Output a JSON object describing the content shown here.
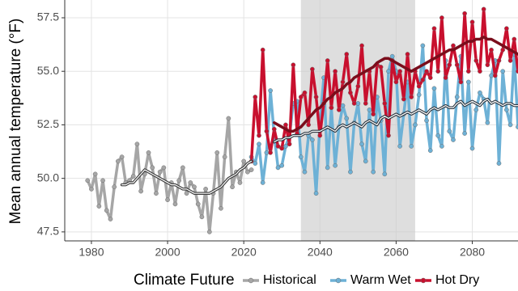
{
  "chart_data": {
    "type": "line",
    "y_label": "Mean annual temperature (°F)",
    "legend_title": "Climate Future",
    "legend": "bottom",
    "grid": true,
    "highlight": [
      2035,
      2065
    ],
    "xlim": [
      1973,
      2092
    ],
    "ylim": [
      47.08,
      58.33
    ],
    "xticks": [
      1980,
      2000,
      2020,
      2040,
      2060,
      2080
    ],
    "yticks": [
      47.5,
      {
        "value": 50,
        "label": "50.0"
      },
      52.5,
      {
        "value": 55,
        "label": "55.0"
      },
      57.5
    ],
    "x": [
      1979,
      1980,
      1981,
      1982,
      1983,
      1984,
      1985,
      1986,
      1987,
      1988,
      1989,
      1990,
      1991,
      1992,
      1993,
      1994,
      1995,
      1996,
      1997,
      1998,
      1999,
      2000,
      2001,
      2002,
      2003,
      2004,
      2005,
      2006,
      2007,
      2008,
      2009,
      2010,
      2011,
      2012,
      2013,
      2014,
      2015,
      2016,
      2017,
      2018,
      2019,
      2020,
      2021,
      2022,
      2023,
      2024,
      2025,
      2026,
      2027,
      2028,
      2029,
      2030,
      2031,
      2032,
      2033,
      2034,
      2035,
      2036,
      2037,
      2038,
      2039,
      2040,
      2041,
      2042,
      2043,
      2044,
      2045,
      2046,
      2047,
      2048,
      2049,
      2050,
      2051,
      2052,
      2053,
      2054,
      2055,
      2056,
      2057,
      2058,
      2059,
      2060,
      2061,
      2062,
      2063,
      2064,
      2065,
      2066,
      2067,
      2068,
      2069,
      2070,
      2071,
      2072,
      2073,
      2074,
      2075,
      2076,
      2077,
      2078,
      2079,
      2080,
      2081,
      2082,
      2083,
      2084,
      2085,
      2086,
      2087,
      2088,
      2089,
      2090,
      2091,
      2092
    ],
    "series": [
      {
        "name": "Historical",
        "color": "#a6a6a6",
        "trend_color": "#3a3a3a",
        "values": [
          49.9,
          49.5,
          50.2,
          48.7,
          49.9,
          48.5,
          48.1,
          49.6,
          50.8,
          51.0,
          49.8,
          49.9,
          50.1,
          51.6,
          49.4,
          50.2,
          51.2,
          50.5,
          49.3,
          50.3,
          50.5,
          49.0,
          49.8,
          48.8,
          49.9,
          50.5,
          49.3,
          49.8,
          49.6,
          48.8,
          48.2,
          49.5,
          47.5,
          49.3,
          51.2,
          48.6,
          51.0,
          52.8,
          49.6,
          50.3,
          49.8,
          50.8,
          50.3,
          50.4,
          null,
          null,
          null,
          null,
          null,
          null,
          null,
          null,
          null,
          null,
          null,
          null,
          null,
          null,
          null,
          null,
          null,
          null,
          null,
          null,
          null,
          null,
          null,
          null,
          null,
          null,
          null,
          null,
          null,
          null,
          null,
          null,
          null,
          null,
          null,
          null,
          null,
          null,
          null,
          null,
          null,
          null,
          null,
          null,
          null,
          null,
          null,
          null,
          null,
          null,
          null,
          null,
          null,
          null,
          null,
          null,
          null,
          null,
          null,
          null,
          null,
          null,
          null,
          null,
          null,
          null,
          null,
          null,
          null,
          null
        ],
        "trend": [
          null,
          null,
          null,
          null,
          null,
          null,
          null,
          null,
          null,
          49.7,
          49.7,
          49.8,
          49.8,
          50.0,
          50.2,
          50.4,
          50.3,
          50.2,
          50.1,
          50.0,
          49.9,
          49.8,
          49.7,
          49.7,
          49.6,
          49.5,
          49.5,
          49.4,
          49.3,
          49.3,
          49.3,
          49.3,
          49.3,
          49.4,
          49.5,
          49.6,
          49.8,
          50.0,
          50.1,
          50.2,
          50.4,
          50.5,
          50.7,
          50.8,
          null,
          null,
          null,
          null,
          null,
          null,
          null,
          null,
          null,
          null,
          null,
          null,
          null,
          null,
          null,
          null,
          null,
          null,
          null,
          null,
          null,
          null,
          null,
          null,
          null,
          null,
          null,
          null,
          null,
          null,
          null,
          null,
          null,
          null,
          null,
          null,
          null,
          null,
          null,
          null,
          null,
          null,
          null,
          null,
          null,
          null,
          null,
          null,
          null,
          null,
          null,
          null,
          null,
          null,
          null,
          null,
          null,
          null,
          null,
          null,
          null,
          null,
          null,
          null,
          null,
          null,
          null,
          null,
          null,
          null
        ]
      },
      {
        "name": "Warm Wet",
        "color": "#6db1d6",
        "trend_color": "#2b3640",
        "values": [
          null,
          null,
          null,
          null,
          null,
          null,
          null,
          null,
          null,
          null,
          null,
          null,
          null,
          null,
          null,
          null,
          null,
          null,
          null,
          null,
          null,
          null,
          null,
          null,
          null,
          null,
          null,
          null,
          null,
          null,
          null,
          null,
          null,
          null,
          null,
          null,
          null,
          null,
          null,
          null,
          null,
          null,
          null,
          51.0,
          50.7,
          51.6,
          49.8,
          51.2,
          54.1,
          52.0,
          50.5,
          50.6,
          51.5,
          52.0,
          53.5,
          53.6,
          51.0,
          50.3,
          52.0,
          51.8,
          49.3,
          52.6,
          54.7,
          50.5,
          53.3,
          50.6,
          52.4,
          53.4,
          52.8,
          50.3,
          52.6,
          53.5,
          51.6,
          50.8,
          53.2,
          50.3,
          53.8,
          52.7,
          50.2,
          55.0,
          55.7,
          55.0,
          51.5,
          53.0,
          54.5,
          51.5,
          52.5,
          53.9,
          56.2,
          52.7,
          51.3,
          54.2,
          52.0,
          51.5,
          55.5,
          52.2,
          51.8,
          53.8,
          55.7,
          52.1,
          54.5,
          51.4,
          53.2,
          54.0,
          53.7,
          52.6,
          54.8,
          55.5,
          50.7,
          55.0,
          53.2,
          52.5,
          55.8,
          52.4
        ],
        "trend": [
          null,
          null,
          null,
          null,
          null,
          null,
          null,
          null,
          null,
          null,
          null,
          null,
          null,
          null,
          null,
          null,
          null,
          null,
          null,
          null,
          null,
          null,
          null,
          null,
          null,
          null,
          null,
          null,
          null,
          null,
          null,
          null,
          null,
          null,
          null,
          null,
          null,
          null,
          null,
          null,
          null,
          null,
          null,
          null,
          null,
          null,
          null,
          null,
          null,
          51.7,
          51.8,
          51.8,
          51.9,
          51.9,
          52.0,
          52.0,
          52.0,
          52.1,
          52.1,
          52.2,
          52.2,
          52.2,
          52.3,
          52.4,
          52.3,
          52.2,
          52.4,
          52.5,
          52.4,
          52.5,
          52.6,
          52.5,
          52.4,
          52.6,
          52.7,
          52.6,
          52.5,
          52.8,
          52.9,
          52.8,
          52.9,
          53.0,
          52.9,
          53.0,
          53.1,
          53.0,
          53.1,
          53.2,
          53.1,
          53.0,
          53.2,
          53.3,
          53.2,
          53.3,
          53.4,
          53.3,
          53.3,
          53.5,
          53.6,
          53.4,
          53.5,
          53.6,
          53.5,
          53.4,
          53.6,
          53.7,
          53.5,
          53.6,
          53.5,
          53.4,
          53.5,
          53.5,
          53.4,
          53.4
        ]
      },
      {
        "name": "Hot Dry",
        "color": "#c8102e",
        "trend_color": "#7a0e1c",
        "values": [
          null,
          null,
          null,
          null,
          null,
          null,
          null,
          null,
          null,
          null,
          null,
          null,
          null,
          null,
          null,
          null,
          null,
          null,
          null,
          null,
          null,
          null,
          null,
          null,
          null,
          null,
          null,
          null,
          null,
          null,
          null,
          null,
          null,
          null,
          null,
          null,
          null,
          null,
          null,
          null,
          null,
          null,
          null,
          50.8,
          53.8,
          52.0,
          56.0,
          52.2,
          51.2,
          52.3,
          51.5,
          51.4,
          52.5,
          51.6,
          55.3,
          52.1,
          53.8,
          54.0,
          52.5,
          55.1,
          53.8,
          52.0,
          53.5,
          55.5,
          53.3,
          55.0,
          53.2,
          54.5,
          55.8,
          54.0,
          53.5,
          54.3,
          56.2,
          53.5,
          55.0,
          53.0,
          55.3,
          55.2,
          53.5,
          52.0,
          55.5,
          54.5,
          55.0,
          53.7,
          55.8,
          53.8,
          55.0,
          54.3,
          54.6,
          55.0,
          54.7,
          57.0,
          55.0,
          57.5,
          54.7,
          55.3,
          56.2,
          55.3,
          54.5,
          57.7,
          55.0,
          57.3,
          55.5,
          55.0,
          57.9,
          55.3,
          56.0,
          54.8,
          55.5,
          56.0,
          57.0,
          55.5,
          56.5,
          55.0
        ],
        "trend": [
          null,
          null,
          null,
          null,
          null,
          null,
          null,
          null,
          null,
          null,
          null,
          null,
          null,
          null,
          null,
          null,
          null,
          null,
          null,
          null,
          null,
          null,
          null,
          null,
          null,
          null,
          null,
          null,
          null,
          null,
          null,
          null,
          null,
          null,
          null,
          null,
          null,
          null,
          null,
          null,
          null,
          null,
          null,
          null,
          null,
          null,
          null,
          null,
          null,
          52.6,
          52.5,
          52.4,
          52.3,
          52.2,
          52.2,
          52.3,
          52.4,
          52.6,
          52.8,
          53.0,
          53.2,
          53.3,
          53.5,
          53.7,
          53.8,
          54.0,
          54.1,
          54.2,
          54.4,
          54.5,
          54.7,
          54.8,
          54.9,
          55.0,
          55.1,
          55.2,
          55.4,
          55.5,
          55.6,
          55.6,
          55.5,
          55.4,
          55.3,
          55.2,
          55.1,
          55.0,
          55.1,
          55.2,
          55.3,
          55.4,
          55.5,
          55.6,
          55.7,
          55.8,
          55.9,
          56.0,
          56.0,
          56.1,
          56.2,
          56.3,
          56.4,
          56.4,
          56.5,
          56.5,
          56.6,
          56.5,
          56.5,
          56.4,
          56.3,
          56.2,
          56.1,
          56.0,
          55.9,
          55.8
        ]
      }
    ]
  }
}
